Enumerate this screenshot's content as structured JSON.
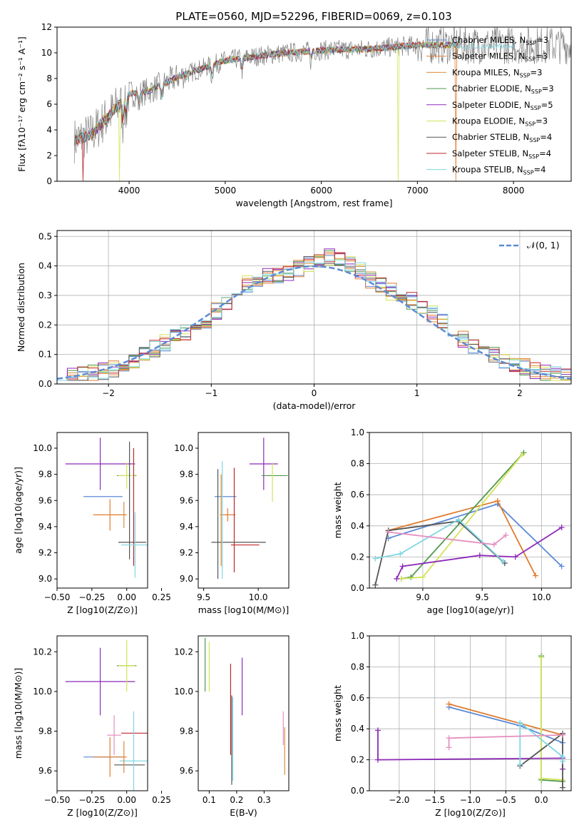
{
  "figure_title": "PLATE=0560, MJD=52296, FIBERID=0069, z=0.103",
  "colors": [
    "#5b8ad6",
    "#e07b2e",
    "#d98c3a",
    "#4f9a4b",
    "#8e2ab8",
    "#d3e35a",
    "#555555",
    "#c0272d",
    "#7fd7e3"
  ],
  "chart_data": [
    {
      "id": "spectrum",
      "type": "line",
      "title": "PLATE=0560, MJD=52296, FIBERID=0069, z=0.103",
      "xlabel": "wavelength [Angstrom, rest frame]",
      "ylabel": "Flux [fλ10⁻¹⁷ erg cm⁻² s⁻¹ A⁻¹]",
      "xlim": [
        3250,
        8600
      ],
      "ylim": [
        0,
        12
      ],
      "xticks": [
        4000,
        5000,
        6000,
        7000,
        8000
      ],
      "yticks": [
        0,
        2,
        4,
        6,
        8,
        10,
        12
      ],
      "legend": "top-right",
      "series": [
        {
          "name": "Chabrier MILES, N_SSP=3"
        },
        {
          "name": "Salpeter MILES, N_SSP=3"
        },
        {
          "name": "Kroupa MILES, N_SSP=3"
        },
        {
          "name": "Chabrier ELODIE, N_SSP=3"
        },
        {
          "name": "Salpeter ELODIE, N_SSP=5"
        },
        {
          "name": "Kroupa ELODIE, N_SSP=3"
        },
        {
          "name": "Chabrier STELIB, N_SSP=4"
        },
        {
          "name": "Salpeter STELIB, N_SSP=4"
        },
        {
          "name": "Kroupa STELIB, N_SSP=4"
        }
      ],
      "continuum": {
        "x": [
          3430,
          3600,
          3800,
          4000,
          4200,
          4500,
          5000,
          5500,
          6000,
          6500,
          7000,
          7400
        ],
        "y": [
          3.2,
          3.6,
          5.2,
          6.8,
          7.0,
          8.1,
          9.4,
          9.9,
          10.2,
          10.3,
          10.6,
          10.6
        ]
      },
      "dropouts": [
        [
          3520,
          0
        ],
        [
          3900,
          0
        ],
        [
          6800,
          0
        ],
        [
          7400,
          0
        ]
      ]
    },
    {
      "id": "residuals",
      "type": "line",
      "xlabel": "(data-model)/error",
      "ylabel": "Normed distribution",
      "xlim": [
        -2.5,
        2.5
      ],
      "ylim": [
        0,
        0.52
      ],
      "xticks": [
        -2,
        -1,
        0,
        1,
        2
      ],
      "yticks": [
        0.0,
        0.1,
        0.2,
        0.3,
        0.4,
        0.5
      ],
      "grid": true,
      "legend": "top-right",
      "reference_label": "𝒩(0, 1)",
      "bins": 50,
      "bin_range": [
        -2.5,
        2.5
      ]
    },
    {
      "id": "age_vs_Z",
      "type": "scatter",
      "xlabel": "Z [log10(Z/Z⊙)]",
      "ylabel": "age  [log10(age/yr)]",
      "xlim": [
        -0.5,
        0.15
      ],
      "ylim": [
        8.93,
        10.12
      ],
      "xticks": [
        -0.5,
        -0.25,
        0.0,
        0.25
      ],
      "ytick_labels": [
        "9.0",
        "9.2",
        "9.4",
        "9.6",
        "9.8",
        "10.0"
      ],
      "yticks": [
        9.0,
        9.2,
        9.4,
        9.6,
        9.8,
        10.0
      ],
      "crosses": [
        {
          "c": 0,
          "x": -0.17,
          "xe": 0.14,
          "y": 9.63,
          "ye": 0.0
        },
        {
          "c": 1,
          "x": -0.12,
          "xe": 0.12,
          "y": 9.49,
          "ye": 0.12
        },
        {
          "c": 4,
          "x": -0.19,
          "xe": 0.25,
          "y": 9.88,
          "ye": 0.2
        },
        {
          "c": 3,
          "x": 0.0,
          "xe": 0.07,
          "y": 9.79,
          "ye": 0.0
        },
        {
          "c": 5,
          "x": 0.0,
          "xe": 0.06,
          "y": 9.79,
          "ye": 0.1
        },
        {
          "c": 6,
          "x": 0.02,
          "xe": 0.0,
          "y": 9.6,
          "ye": 0.45
        },
        {
          "c": 7,
          "x": 0.05,
          "xe": 0.0,
          "y": 9.55,
          "ye": 0.45
        },
        {
          "c": 6,
          "x": 0.04,
          "xe": 0.1,
          "y": 9.28,
          "ye": 0.0
        },
        {
          "c": 8,
          "x": 0.06,
          "xe": 0.1,
          "y": 9.26,
          "ye": 0.25
        },
        {
          "c": 2,
          "x": -0.02,
          "xe": 0.0,
          "y": 9.49,
          "ye": 0.1
        }
      ]
    },
    {
      "id": "age_vs_mass",
      "type": "scatter",
      "xlabel": "mass [log10(M/M⊙)]",
      "ylabel": "",
      "xlim": [
        9.45,
        10.28
      ],
      "ylim": [
        8.93,
        10.12
      ],
      "xticks": [
        9.5,
        10.0
      ],
      "yticks": [
        9.0,
        9.2,
        9.4,
        9.6,
        9.8,
        10.0
      ],
      "crosses": [
        {
          "c": 0,
          "x": 9.7,
          "xe": 0.1,
          "y": 9.63,
          "ye": 0.0
        },
        {
          "c": 1,
          "x": 9.72,
          "xe": 0.07,
          "y": 9.49,
          "ye": 0.05
        },
        {
          "c": 4,
          "x": 10.05,
          "xe": 0.13,
          "y": 9.88,
          "ye": 0.2
        },
        {
          "c": 3,
          "x": 10.15,
          "xe": 0.12,
          "y": 9.79,
          "ye": 0.0
        },
        {
          "c": 5,
          "x": 10.13,
          "xe": 0.0,
          "y": 9.74,
          "ye": 0.15
        },
        {
          "c": 6,
          "x": 9.63,
          "xe": 0.0,
          "y": 9.42,
          "ye": 0.42
        },
        {
          "c": 7,
          "x": 9.78,
          "xe": 0.0,
          "y": 9.45,
          "ye": 0.4
        },
        {
          "c": 6,
          "x": 9.82,
          "xe": 0.25,
          "y": 9.28,
          "ye": 0.0
        },
        {
          "c": 7,
          "x": 9.88,
          "xe": 0.13,
          "y": 9.26,
          "ye": 0.0
        },
        {
          "c": 8,
          "x": 9.67,
          "xe": 0.0,
          "y": 9.45,
          "ye": 0.45
        },
        {
          "c": 2,
          "x": 9.66,
          "xe": 0.0,
          "y": 9.45,
          "ye": 0.35
        }
      ]
    },
    {
      "id": "weight_vs_age",
      "type": "line",
      "xlabel": "age  [log10(age/yr)]",
      "ylabel": "mass weight",
      "xlim": [
        8.55,
        10.25
      ],
      "ylim": [
        0,
        1
      ],
      "xticks": [
        9.0,
        9.5,
        10.0
      ],
      "yticks": [
        0.0,
        0.2,
        0.4,
        0.6,
        0.8,
        1.0
      ],
      "grid": true,
      "series": [
        {
          "c": 0,
          "x": [
            8.71,
            9.63,
            10.17
          ],
          "y": [
            0.32,
            0.54,
            0.14
          ]
        },
        {
          "c": 1,
          "x": [
            8.71,
            9.63,
            9.95
          ],
          "y": [
            0.37,
            0.56,
            0.08
          ]
        },
        {
          "c": 3,
          "x": [
            8.82,
            8.9,
            9.85
          ],
          "y": [
            0.06,
            0.07,
            0.87
          ]
        },
        {
          "c": 5,
          "x": [
            8.82,
            9.0,
            9.84
          ],
          "y": [
            0.06,
            0.07,
            0.86
          ]
        },
        {
          "c": 4,
          "x": [
            8.78,
            8.83,
            9.48,
            9.78,
            10.17
          ],
          "y": [
            0.06,
            0.14,
            0.21,
            0.2,
            0.39
          ]
        },
        {
          "c": 6,
          "x": [
            8.6,
            8.71,
            9.3,
            9.69
          ],
          "y": [
            0.02,
            0.37,
            0.43,
            0.16
          ]
        },
        {
          "c": 8,
          "x": [
            8.6,
            8.81,
            9.3,
            9.68
          ],
          "y": [
            0.19,
            0.22,
            0.44,
            0.17
          ]
        },
        {
          "c": 9,
          "x": [
            8.71,
            9.6,
            9.7
          ],
          "y": [
            0.36,
            0.28,
            0.34
          ]
        }
      ]
    },
    {
      "id": "mass_vs_Z",
      "type": "scatter",
      "xlabel": "Z [log10(Z/Z⊙)]",
      "ylabel": "mass [log10(M/M⊙)]",
      "xlim": [
        -0.5,
        0.15
      ],
      "ylim": [
        9.5,
        10.28
      ],
      "xticks": [
        -0.5,
        -0.25,
        0.0,
        0.25
      ],
      "yticks": [
        9.6,
        9.8,
        10.0,
        10.2
      ],
      "crosses": [
        {
          "c": 0,
          "x": -0.17,
          "xe": 0.14,
          "y": 9.67,
          "ye": 0.0
        },
        {
          "c": 1,
          "x": -0.12,
          "xe": 0.12,
          "y": 9.67,
          "ye": 0.1
        },
        {
          "c": 4,
          "x": -0.19,
          "xe": 0.25,
          "y": 10.05,
          "ye": 0.17
        },
        {
          "c": 3,
          "x": 0.0,
          "xe": 0.07,
          "y": 10.13,
          "ye": 0.0
        },
        {
          "c": 5,
          "x": 0.0,
          "xe": 0.06,
          "y": 10.13,
          "ye": 0.13
        },
        {
          "c": 9,
          "x": -0.09,
          "xe": 0.05,
          "y": 9.78,
          "ye": 0.1
        },
        {
          "c": 6,
          "x": 0.02,
          "xe": 0.11,
          "y": 9.63,
          "ye": 0.0
        },
        {
          "c": 7,
          "x": 0.06,
          "xe": 0.1,
          "y": 9.79,
          "ye": 0.0
        },
        {
          "c": 8,
          "x": 0.05,
          "xe": 0.1,
          "y": 9.65,
          "ye": 0.25
        },
        {
          "c": 2,
          "x": -0.02,
          "xe": 0.0,
          "y": 9.67,
          "ye": 0.08
        }
      ]
    },
    {
      "id": "mass_vs_ebv",
      "type": "scatter",
      "xlabel": "E(B-V)",
      "ylabel": "",
      "xlim": [
        0.06,
        0.39
      ],
      "ylim": [
        9.5,
        10.28
      ],
      "xticks": [
        0.1,
        0.2,
        0.3
      ],
      "yticks": [
        9.6,
        9.8,
        10.0,
        10.2
      ],
      "bars": [
        {
          "c": 3,
          "x": 0.085,
          "y0": 10.0,
          "y1": 10.27
        },
        {
          "c": 5,
          "x": 0.1,
          "y0": 10.0,
          "y1": 10.25
        },
        {
          "c": 7,
          "x": 0.178,
          "y0": 9.68,
          "y1": 10.14
        },
        {
          "c": 6,
          "x": 0.182,
          "y0": 9.53,
          "y1": 9.98
        },
        {
          "c": 8,
          "x": 0.186,
          "y0": 9.55,
          "y1": 9.97
        },
        {
          "c": 4,
          "x": 0.22,
          "y0": 9.88,
          "y1": 10.17
        },
        {
          "c": 9,
          "x": 0.37,
          "y0": 9.73,
          "y1": 9.9
        },
        {
          "c": 2,
          "x": 0.375,
          "y0": 9.58,
          "y1": 9.82
        }
      ]
    },
    {
      "id": "weight_vs_Z",
      "type": "line",
      "xlabel": "Z [log10(Z/Z⊙)]",
      "ylabel": "mass weight",
      "xlim": [
        -2.42,
        0.42
      ],
      "ylim": [
        0,
        1
      ],
      "xticks": [
        -2.0,
        -1.5,
        -1.0,
        -0.5,
        0.0
      ],
      "yticks": [
        0.0,
        0.2,
        0.4,
        0.6,
        0.8,
        1.0
      ],
      "grid": true,
      "series": [
        {
          "c": 0,
          "x": [
            -1.3,
            -0.3,
            0.3
          ],
          "y": [
            0.54,
            0.42,
            0.31
          ]
        },
        {
          "c": 1,
          "x": [
            -1.3,
            0.3
          ],
          "y": [
            0.56,
            0.36
          ]
        },
        {
          "c": 3,
          "x": [
            0.0,
            0.0,
            0.3
          ],
          "y": [
            0.87,
            0.07,
            0.06
          ]
        },
        {
          "c": 5,
          "x": [
            0.0,
            0.0,
            0.3
          ],
          "y": [
            0.86,
            0.08,
            0.07
          ]
        },
        {
          "c": 4,
          "x": [
            -2.3,
            -2.3,
            0.3,
            0.3
          ],
          "y": [
            0.39,
            0.2,
            0.21,
            0.14
          ]
        },
        {
          "c": 6,
          "x": [
            -0.3,
            0.3,
            0.3
          ],
          "y": [
            0.16,
            0.37,
            0.02
          ]
        },
        {
          "c": 8,
          "x": [
            -0.3,
            -0.3,
            0.3,
            0.3
          ],
          "y": [
            0.17,
            0.44,
            0.22,
            0.19
          ]
        },
        {
          "c": 9,
          "x": [
            -1.3,
            -1.3,
            0.3
          ],
          "y": [
            0.28,
            0.34,
            0.36
          ]
        }
      ]
    }
  ]
}
